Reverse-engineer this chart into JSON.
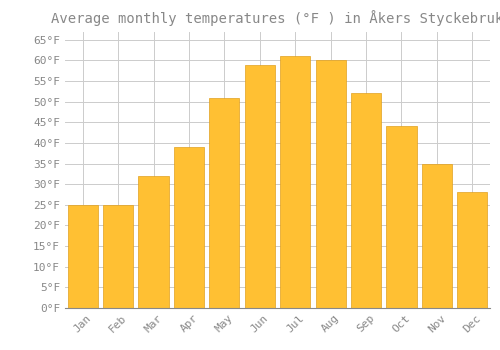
{
  "title": "Average monthly temperatures (°F ) in Åkers Styckebruk",
  "months": [
    "Jan",
    "Feb",
    "Mar",
    "Apr",
    "May",
    "Jun",
    "Jul",
    "Aug",
    "Sep",
    "Oct",
    "Nov",
    "Dec"
  ],
  "values": [
    25,
    25,
    32,
    39,
    51,
    59,
    61,
    60,
    52,
    44,
    35,
    28
  ],
  "bar_color": "#FFC033",
  "bar_edge_color": "#E0A020",
  "background_color": "#FFFFFF",
  "grid_color": "#CCCCCC",
  "text_color": "#888888",
  "ylim": [
    0,
    67
  ],
  "yticks": [
    0,
    5,
    10,
    15,
    20,
    25,
    30,
    35,
    40,
    45,
    50,
    55,
    60,
    65
  ],
  "ylabel_suffix": "°F",
  "title_fontsize": 10,
  "tick_fontsize": 8,
  "font_family": "monospace",
  "bar_width": 0.85
}
